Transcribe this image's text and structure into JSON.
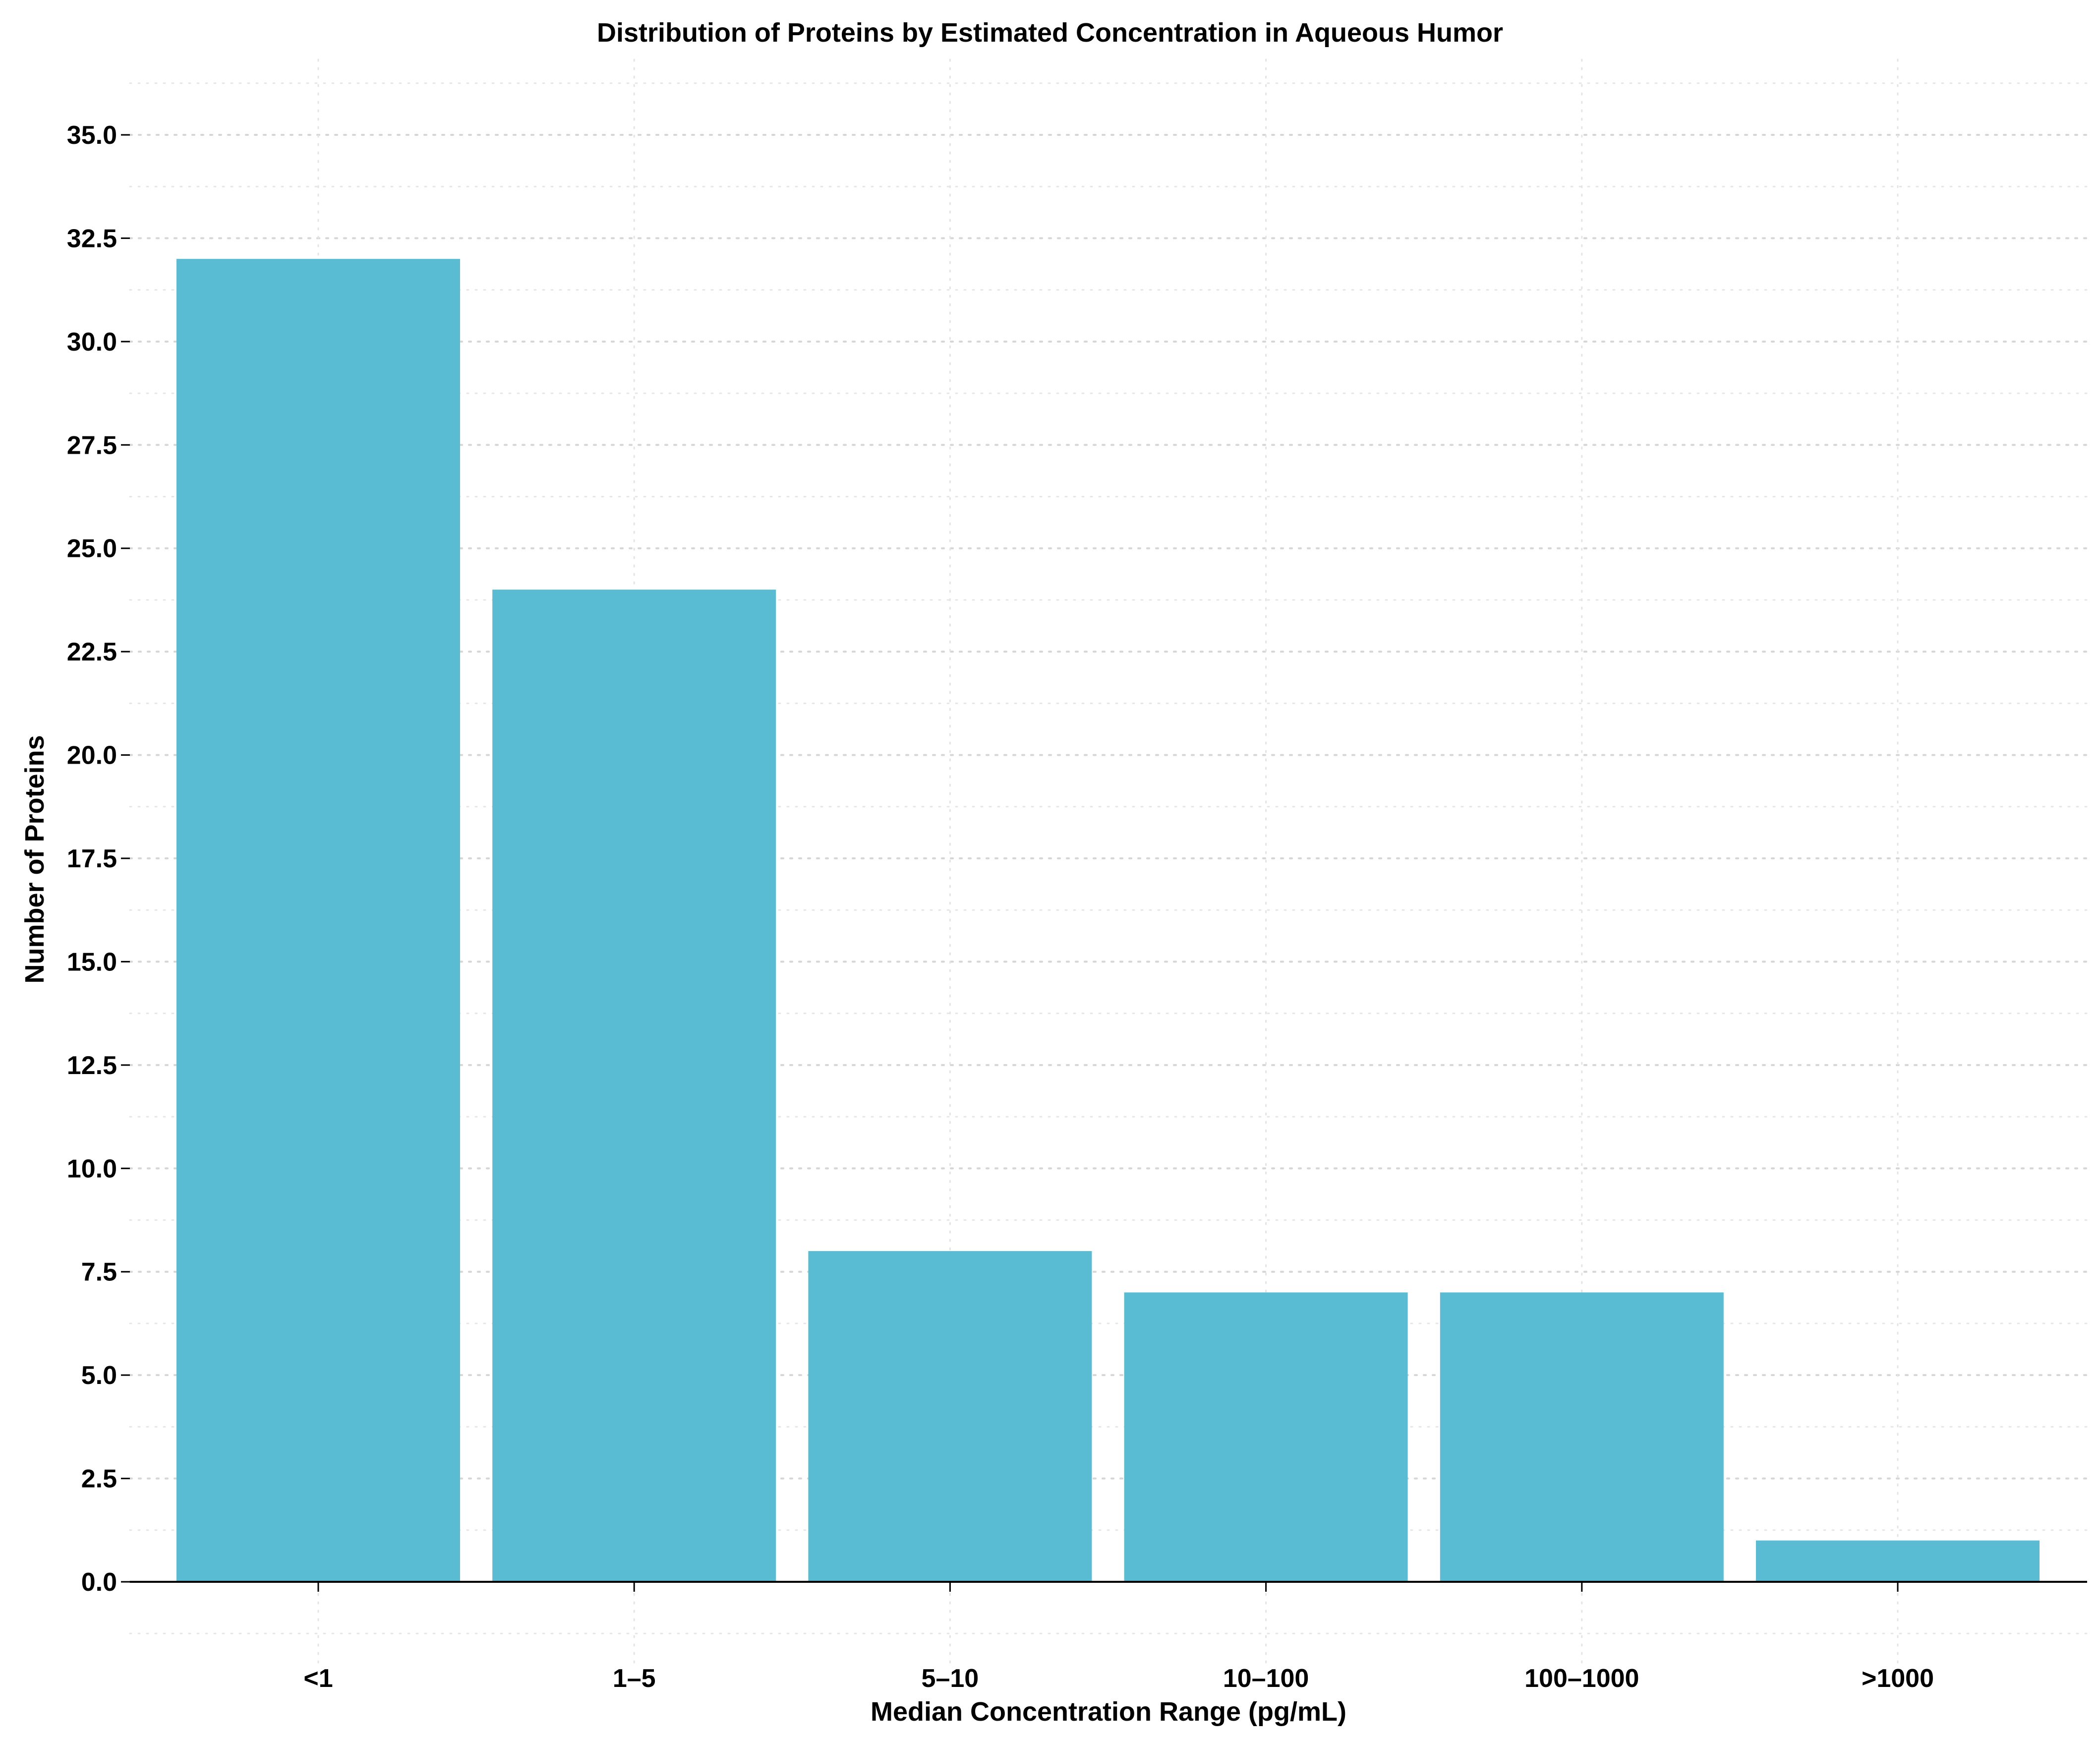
{
  "chart_data": {
    "type": "bar",
    "title": "Distribution of Proteins by Estimated Concentration in Aqueous Humor",
    "xlabel": "Median Concentration Range (pg/mL)",
    "ylabel": "Number of Proteins",
    "categories": [
      "<1",
      "1–5",
      "5–10",
      "10–100",
      "100–1000",
      ">1000"
    ],
    "values": [
      32,
      24,
      8,
      7,
      7,
      1
    ],
    "ylim": [
      -1.3,
      36.8
    ],
    "yticks": [
      "0.0",
      "2.5",
      "5.0",
      "7.5",
      "10.0",
      "12.5",
      "15.0",
      "17.5",
      "20.0",
      "22.5",
      "25.0",
      "27.5",
      "30.0",
      "32.5",
      "35.0"
    ],
    "bar_color": "#5abcd3",
    "grid": true,
    "legend": "none"
  }
}
